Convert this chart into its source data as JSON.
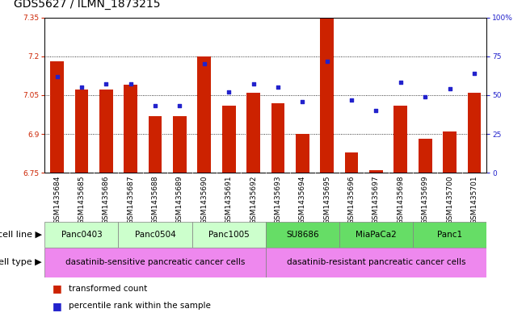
{
  "title": "GDS5627 / ILMN_1873215",
  "samples": [
    "GSM1435684",
    "GSM1435685",
    "GSM1435686",
    "GSM1435687",
    "GSM1435688",
    "GSM1435689",
    "GSM1435690",
    "GSM1435691",
    "GSM1435692",
    "GSM1435693",
    "GSM1435694",
    "GSM1435695",
    "GSM1435696",
    "GSM1435697",
    "GSM1435698",
    "GSM1435699",
    "GSM1435700",
    "GSM1435701"
  ],
  "bar_values": [
    7.18,
    7.07,
    7.07,
    7.09,
    6.97,
    6.97,
    7.2,
    7.01,
    7.06,
    7.02,
    6.9,
    7.35,
    6.83,
    6.76,
    7.01,
    6.88,
    6.91,
    7.06
  ],
  "percentile_values": [
    62,
    55,
    57,
    57,
    43,
    43,
    70,
    52,
    57,
    55,
    46,
    72,
    47,
    40,
    58,
    49,
    54,
    64
  ],
  "ylim_left": [
    6.75,
    7.35
  ],
  "ylim_right": [
    0,
    100
  ],
  "yticks_left": [
    6.75,
    6.9,
    7.05,
    7.2,
    7.35
  ],
  "yticks_right": [
    0,
    25,
    50,
    75,
    100
  ],
  "ytick_labels_right": [
    "0",
    "25",
    "50",
    "75",
    "100%"
  ],
  "grid_values": [
    7.2,
    7.05,
    6.9
  ],
  "bar_color": "#cc2200",
  "scatter_color": "#2222cc",
  "cell_line_groups": [
    {
      "label": "Panc0403",
      "start": 0,
      "end": 2,
      "color": "#ccffcc"
    },
    {
      "label": "Panc0504",
      "start": 3,
      "end": 5,
      "color": "#ccffcc"
    },
    {
      "label": "Panc1005",
      "start": 6,
      "end": 8,
      "color": "#ccffcc"
    },
    {
      "label": "SU8686",
      "start": 9,
      "end": 11,
      "color": "#66dd66"
    },
    {
      "label": "MiaPaCa2",
      "start": 12,
      "end": 14,
      "color": "#66dd66"
    },
    {
      "label": "Panc1",
      "start": 15,
      "end": 17,
      "color": "#66dd66"
    }
  ],
  "cell_type_groups": [
    {
      "label": "dasatinib-sensitive pancreatic cancer cells",
      "start": 0,
      "end": 8,
      "color": "#ee88ee"
    },
    {
      "label": "dasatinib-resistant pancreatic cancer cells",
      "start": 9,
      "end": 17,
      "color": "#ee88ee"
    }
  ],
  "legend_items": [
    {
      "label": "transformed count",
      "color": "#cc2200"
    },
    {
      "label": "percentile rank within the sample",
      "color": "#2222cc"
    }
  ],
  "cell_line_label": "cell line",
  "cell_type_label": "cell type",
  "sample_row_color": "#cccccc",
  "bg_color": "#ffffff",
  "plot_bg_color": "#ffffff",
  "title_fontsize": 10,
  "tick_fontsize": 6.5,
  "row_fontsize": 7.5,
  "legend_fontsize": 7.5
}
